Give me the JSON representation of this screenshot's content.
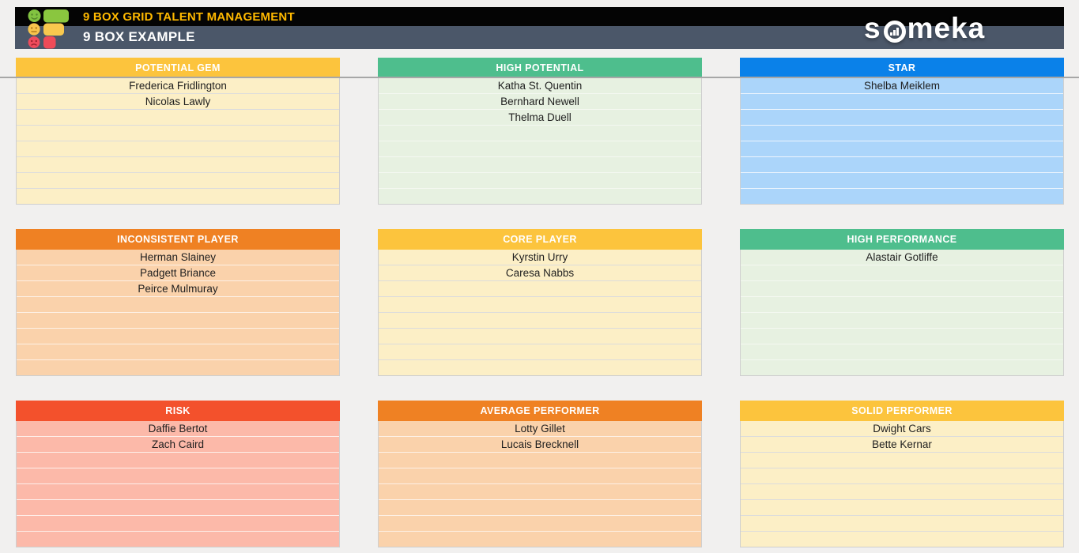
{
  "header": {
    "app_title": "9 BOX GRID TALENT MANAGEMENT",
    "sheet_title": "9 BOX EXAMPLE",
    "app_title_color": "#FFB900",
    "bar_top_color": "#040404",
    "bar_bottom_color": "#4B5769"
  },
  "brand": {
    "text_start": "s",
    "text_end": "meka"
  },
  "rows_per_box": 8,
  "palettes": {
    "gold": {
      "header": "#FCC43D",
      "row": "#FCEFC6",
      "separator": "#DCDCDC"
    },
    "green": {
      "header": "#4EBE8D",
      "row": "#E7F1E1",
      "separator": "#F4F8F1"
    },
    "blue": {
      "header": "#0A81E9",
      "row": "#ABD5FA",
      "separator": "#EDF5FD"
    },
    "orange": {
      "header": "#EF8123",
      "row": "#FAD2AB",
      "separator": "#FDF1E6"
    },
    "red": {
      "header": "#F3512C",
      "row": "#FCB9A9",
      "separator": "#FEEFEA"
    }
  },
  "boxes": [
    {
      "id": "potential-gem",
      "title": "POTENTIAL GEM",
      "palette": "gold",
      "names": [
        "Frederica Fridlington",
        "Nicolas Lawly"
      ]
    },
    {
      "id": "high-potential",
      "title": "HIGH POTENTIAL",
      "palette": "green",
      "names": [
        "Katha St. Quentin",
        "Bernhard Newell",
        "Thelma Duell"
      ]
    },
    {
      "id": "star",
      "title": "STAR",
      "palette": "blue",
      "names": [
        "Shelba Meiklem"
      ]
    },
    {
      "id": "inconsistent-player",
      "title": "INCONSISTENT PLAYER",
      "palette": "orange",
      "names": [
        "Herman Slainey",
        "Padgett Briance",
        "Peirce Mulmuray"
      ]
    },
    {
      "id": "core-player",
      "title": "CORE PLAYER",
      "palette": "gold",
      "names": [
        "Kyrstin Urry",
        "Caresa Nabbs"
      ]
    },
    {
      "id": "high-performance",
      "title": "HIGH PERFORMANCE",
      "palette": "green",
      "names": [
        "Alastair Gotliffe"
      ]
    },
    {
      "id": "risk",
      "title": "RISK",
      "palette": "red",
      "names": [
        "Daffie Bertot",
        "Zach Caird"
      ]
    },
    {
      "id": "average-performer",
      "title": "AVERAGE PERFORMER",
      "palette": "orange",
      "names": [
        "Lotty Gillet",
        "Lucais Brecknell"
      ]
    },
    {
      "id": "solid-performer",
      "title": "SOLID PERFORMER",
      "palette": "gold",
      "names": [
        "Dwight Cars",
        "Bette Kernar"
      ]
    }
  ]
}
